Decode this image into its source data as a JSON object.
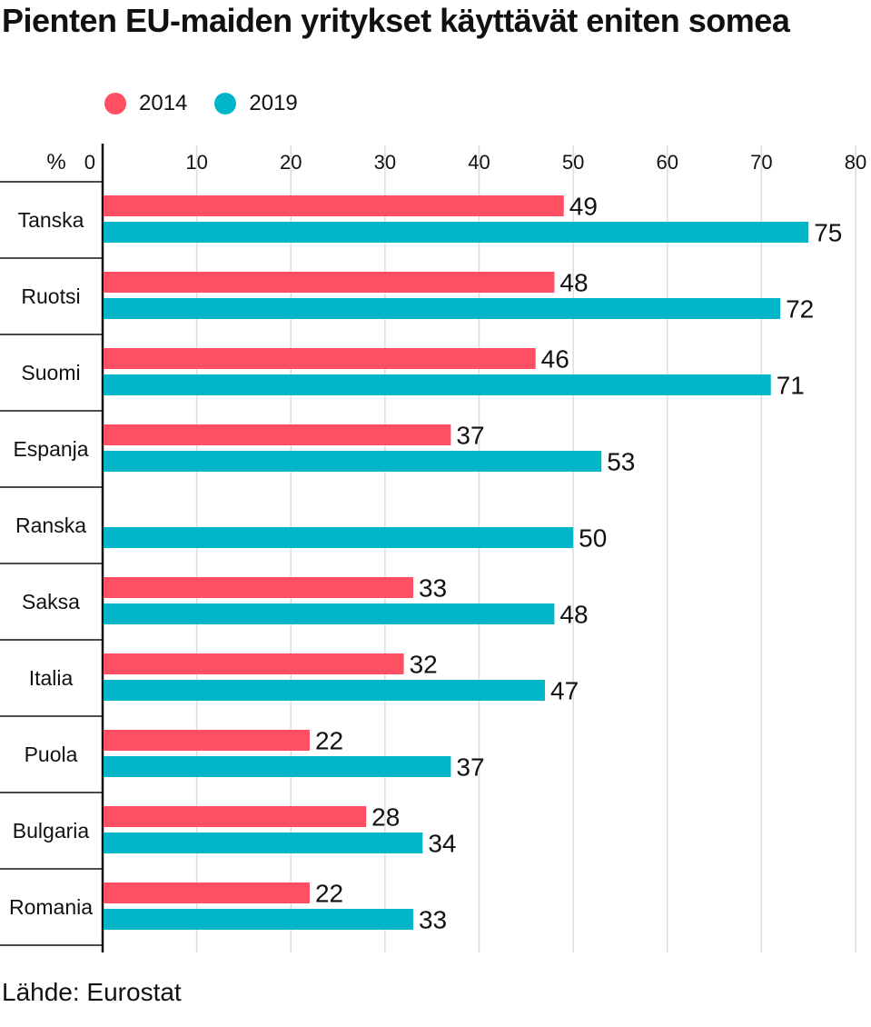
{
  "title": "Pienten EU-maiden yritykset käyttävät eniten somea",
  "source": "Lähde: Eurostat",
  "unit_label": "%",
  "colors": {
    "s2014": "#ff5063",
    "s2019": "#00b6c8"
  },
  "legend": [
    {
      "label": "2014",
      "color": "#ff5063"
    },
    {
      "label": "2019",
      "color": "#00b6c8"
    }
  ],
  "chart_data": {
    "type": "bar",
    "orientation": "horizontal",
    "title": "Pienten EU-maiden yritykset käyttävät eniten somea",
    "xlabel": "%",
    "ylabel": "",
    "xlim": [
      0,
      80
    ],
    "ticks": [
      0,
      10,
      20,
      30,
      40,
      50,
      60,
      70,
      80
    ],
    "grid": true,
    "categories": [
      "Tanska",
      "Ruotsi",
      "Suomi",
      "Espanja",
      "Ranska",
      "Saksa",
      "Italia",
      "Puola",
      "Bulgaria",
      "Romania"
    ],
    "series": [
      {
        "name": "2014",
        "values": [
          49,
          48,
          46,
          37,
          null,
          33,
          32,
          22,
          28,
          22
        ]
      },
      {
        "name": "2019",
        "values": [
          75,
          72,
          71,
          53,
          50,
          48,
          47,
          37,
          34,
          33
        ]
      }
    ]
  }
}
